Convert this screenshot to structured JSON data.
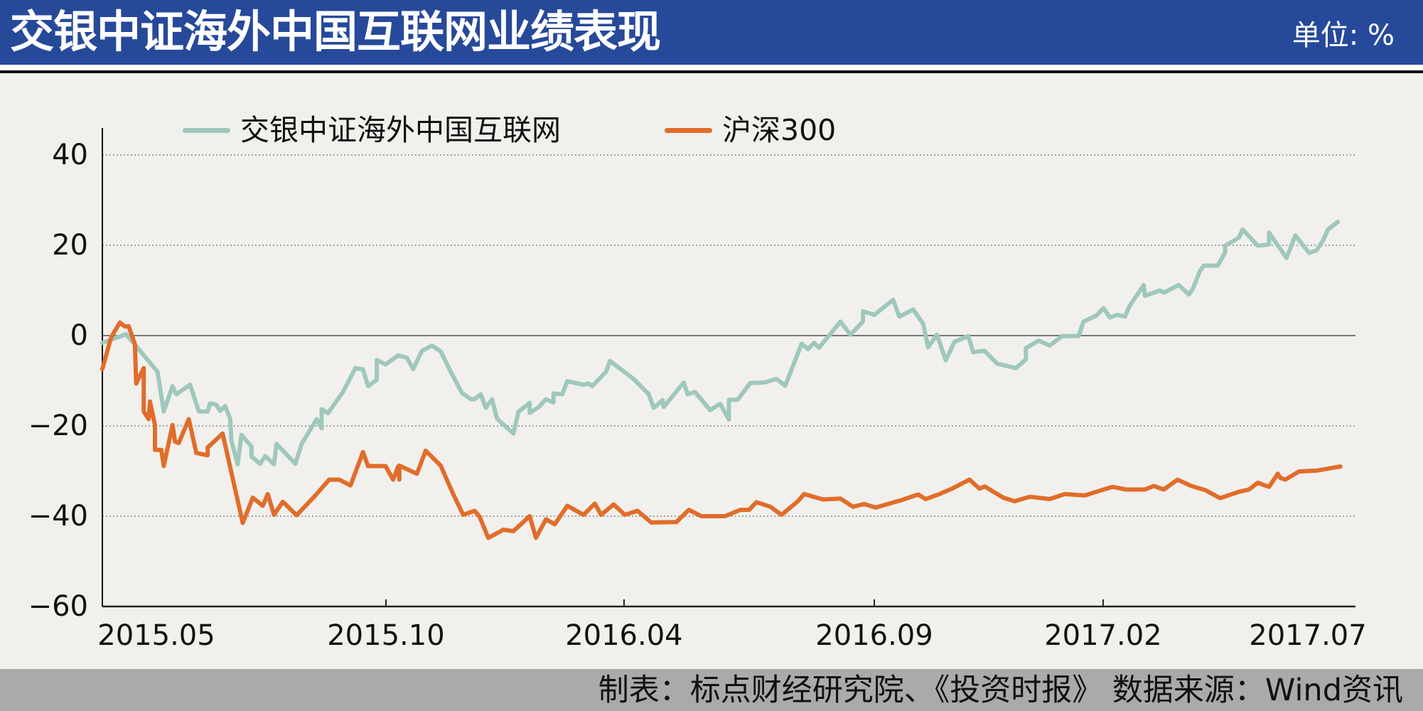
{
  "header": {
    "title": "交银中证海外中国互联网业绩表现",
    "unit": "单位: %"
  },
  "footer": {
    "source": "制表：标点财经研究院、《投资时报》 数据来源：Wind资讯"
  },
  "colors": {
    "header_bg": "#27499a",
    "series_fund": "#9fc8bd",
    "series_hs300": "#e06d2b",
    "background": "#f2f0ec",
    "footer_bg": "#aaaaaa"
  },
  "legend": [
    {
      "label": "交银中证海外中国互联网",
      "color": "#9fc8bd"
    },
    {
      "label": "沪深300",
      "color": "#e06d2b"
    }
  ],
  "chart_data": {
    "type": "line",
    "title": "交银中证海外中国互联网业绩表现",
    "unit": "%",
    "xlabel": "",
    "ylabel": "",
    "ylim": [
      -60,
      40
    ],
    "yticks": [
      40,
      20,
      0,
      -20,
      -40,
      -60
    ],
    "xticks": [
      {
        "label": "2015.05",
        "t": 0.0
      },
      {
        "label": "2015.10",
        "t": 0.2263
      },
      {
        "label": "2016.04",
        "t": 0.4163
      },
      {
        "label": "2016.09",
        "t": 0.616
      },
      {
        "label": "2017.02",
        "t": 0.7986
      },
      {
        "label": "2017.07",
        "t": 1.0
      }
    ],
    "grid": "horizontal dotted",
    "legend_position": "top",
    "x_note": "t = fractional position along time axis from 2015.05 (0) to 2017.07 (1)",
    "series": [
      {
        "name": "交银中证海外中国互联网",
        "color": "#9fc8bd",
        "points": [
          [
            0.0,
            -1.6
          ],
          [
            0.019,
            0.3
          ],
          [
            0.044,
            -8
          ],
          [
            0.049,
            -16.8
          ],
          [
            0.056,
            -11.2
          ],
          [
            0.059,
            -13
          ],
          [
            0.07,
            -10.9
          ],
          [
            0.077,
            -16.8
          ],
          [
            0.084,
            -16.8
          ],
          [
            0.086,
            -15
          ],
          [
            0.091,
            -15.3
          ],
          [
            0.094,
            -16.7
          ],
          [
            0.098,
            -15.6
          ],
          [
            0.102,
            -18.4
          ],
          [
            0.103,
            -23.3
          ],
          [
            0.108,
            -28.5
          ],
          [
            0.111,
            -22
          ],
          [
            0.119,
            -24.6
          ],
          [
            0.119,
            -26.8
          ],
          [
            0.126,
            -28.4
          ],
          [
            0.13,
            -26.7
          ],
          [
            0.137,
            -28.5
          ],
          [
            0.139,
            -24
          ],
          [
            0.154,
            -28.4
          ],
          [
            0.159,
            -24
          ],
          [
            0.171,
            -18.5
          ],
          [
            0.175,
            -20.5
          ],
          [
            0.175,
            -16.3
          ],
          [
            0.18,
            -17.2
          ],
          [
            0.192,
            -12.5
          ],
          [
            0.202,
            -7.2
          ],
          [
            0.208,
            -7.5
          ],
          [
            0.212,
            -11.2
          ],
          [
            0.219,
            -9.8
          ],
          [
            0.219,
            -5.4
          ],
          [
            0.226,
            -6.4
          ],
          [
            0.236,
            -4.4
          ],
          [
            0.243,
            -4.9
          ],
          [
            0.248,
            -7.4
          ],
          [
            0.255,
            -3.4
          ],
          [
            0.263,
            -2.2
          ],
          [
            0.27,
            -3.5
          ],
          [
            0.278,
            -8
          ],
          [
            0.287,
            -12.7
          ],
          [
            0.294,
            -14.1
          ],
          [
            0.297,
            -14.1
          ],
          [
            0.302,
            -13
          ],
          [
            0.306,
            -16
          ],
          [
            0.311,
            -14.1
          ],
          [
            0.315,
            -18.4
          ],
          [
            0.328,
            -21.7
          ],
          [
            0.332,
            -16.9
          ],
          [
            0.341,
            -14.9
          ],
          [
            0.341,
            -17.1
          ],
          [
            0.348,
            -15.9
          ],
          [
            0.354,
            -14.1
          ],
          [
            0.36,
            -14.8
          ],
          [
            0.36,
            -12.8
          ],
          [
            0.367,
            -13
          ],
          [
            0.371,
            -10.1
          ],
          [
            0.384,
            -10.9
          ],
          [
            0.388,
            -10.6
          ],
          [
            0.391,
            -11.2
          ],
          [
            0.402,
            -8
          ],
          [
            0.405,
            -5.6
          ],
          [
            0.424,
            -9.6
          ],
          [
            0.436,
            -13
          ],
          [
            0.44,
            -16
          ],
          [
            0.447,
            -14.3
          ],
          [
            0.448,
            -15.8
          ],
          [
            0.464,
            -10.4
          ],
          [
            0.467,
            -13
          ],
          [
            0.473,
            -12.5
          ],
          [
            0.485,
            -16.5
          ],
          [
            0.493,
            -15.1
          ],
          [
            0.5,
            -18.6
          ],
          [
            0.5,
            -14.2
          ],
          [
            0.507,
            -14.2
          ],
          [
            0.517,
            -10.5
          ],
          [
            0.528,
            -10.4
          ],
          [
            0.538,
            -9.6
          ],
          [
            0.545,
            -11.1
          ],
          [
            0.558,
            -1.8
          ],
          [
            0.563,
            -3
          ],
          [
            0.568,
            -1.6
          ],
          [
            0.572,
            -2.7
          ],
          [
            0.589,
            3.1
          ],
          [
            0.597,
            0.2
          ],
          [
            0.607,
            3.1
          ],
          [
            0.607,
            5.4
          ],
          [
            0.616,
            4.6
          ],
          [
            0.631,
            7.9
          ],
          [
            0.636,
            4.2
          ],
          [
            0.647,
            5.8
          ],
          [
            0.655,
            2.6
          ],
          [
            0.659,
            -2.6
          ],
          [
            0.666,
            0.2
          ],
          [
            0.673,
            -5.5
          ],
          [
            0.68,
            -1.4
          ],
          [
            0.691,
            -0.1
          ],
          [
            0.695,
            -3.7
          ],
          [
            0.699,
            -3.5
          ],
          [
            0.704,
            -3.4
          ],
          [
            0.714,
            -6.2
          ],
          [
            0.729,
            -7.2
          ],
          [
            0.737,
            -5.3
          ],
          [
            0.737,
            -2.8
          ],
          [
            0.747,
            -1.1
          ],
          [
            0.756,
            -2.2
          ],
          [
            0.766,
            -0.1
          ],
          [
            0.779,
            -0.1
          ],
          [
            0.783,
            3.1
          ],
          [
            0.793,
            4.4
          ],
          [
            0.799,
            6.1
          ],
          [
            0.804,
            4
          ],
          [
            0.81,
            4.6
          ],
          [
            0.816,
            4.2
          ],
          [
            0.82,
            6.7
          ],
          [
            0.831,
            11.2
          ],
          [
            0.832,
            8.8
          ],
          [
            0.844,
            10
          ],
          [
            0.847,
            9.5
          ],
          [
            0.859,
            11.2
          ],
          [
            0.867,
            9.1
          ],
          [
            0.87,
            10.2
          ],
          [
            0.876,
            14.4
          ],
          [
            0.879,
            15.5
          ],
          [
            0.89,
            15.5
          ],
          [
            0.896,
            18.4
          ],
          [
            0.896,
            19.9
          ],
          [
            0.907,
            21.7
          ],
          [
            0.91,
            23.5
          ],
          [
            0.922,
            19.9
          ],
          [
            0.931,
            20.2
          ],
          [
            0.931,
            22.8
          ],
          [
            0.945,
            17.2
          ],
          [
            0.952,
            22.2
          ],
          [
            0.963,
            18.3
          ],
          [
            0.969,
            18.9
          ],
          [
            0.974,
            21
          ],
          [
            0.978,
            23.5
          ],
          [
            0.986,
            25.2
          ]
        ]
      },
      {
        "name": "沪深300",
        "color": "#e06d2b",
        "points": [
          [
            0.0,
            -7.4
          ],
          [
            0.007,
            -0.4
          ],
          [
            0.014,
            2.9
          ],
          [
            0.018,
            2
          ],
          [
            0.021,
            2.1
          ],
          [
            0.026,
            -1.9
          ],
          [
            0.027,
            -10.6
          ],
          [
            0.033,
            -7.2
          ],
          [
            0.033,
            -16.8
          ],
          [
            0.037,
            -18.5
          ],
          [
            0.038,
            -14.6
          ],
          [
            0.042,
            -19.8
          ],
          [
            0.042,
            -25.3
          ],
          [
            0.047,
            -25.3
          ],
          [
            0.049,
            -28.9
          ],
          [
            0.056,
            -19.8
          ],
          [
            0.058,
            -23.5
          ],
          [
            0.061,
            -23.8
          ],
          [
            0.069,
            -18.5
          ],
          [
            0.075,
            -26
          ],
          [
            0.084,
            -26.5
          ],
          [
            0.084,
            -24.8
          ],
          [
            0.096,
            -21.7
          ],
          [
            0.112,
            -41.5
          ],
          [
            0.12,
            -35.9
          ],
          [
            0.128,
            -37.7
          ],
          [
            0.132,
            -35.1
          ],
          [
            0.137,
            -39.7
          ],
          [
            0.144,
            -36.8
          ],
          [
            0.155,
            -39.8
          ],
          [
            0.17,
            -35.4
          ],
          [
            0.181,
            -31.9
          ],
          [
            0.189,
            -31.9
          ],
          [
            0.198,
            -33.2
          ],
          [
            0.208,
            -25.8
          ],
          [
            0.212,
            -28.9
          ],
          [
            0.226,
            -28.9
          ],
          [
            0.232,
            -31.9
          ],
          [
            0.236,
            -29
          ],
          [
            0.237,
            -31.9
          ],
          [
            0.237,
            -28.8
          ],
          [
            0.251,
            -30.6
          ],
          [
            0.258,
            -25.5
          ],
          [
            0.27,
            -28.8
          ],
          [
            0.28,
            -35.1
          ],
          [
            0.288,
            -39.7
          ],
          [
            0.297,
            -38.8
          ],
          [
            0.301,
            -40.1
          ],
          [
            0.308,
            -44.8
          ],
          [
            0.32,
            -43
          ],
          [
            0.328,
            -43.3
          ],
          [
            0.341,
            -40
          ],
          [
            0.346,
            -44.8
          ],
          [
            0.354,
            -40.7
          ],
          [
            0.361,
            -41.8
          ],
          [
            0.371,
            -37.7
          ],
          [
            0.384,
            -39.7
          ],
          [
            0.393,
            -37.2
          ],
          [
            0.398,
            -39.7
          ],
          [
            0.408,
            -37.4
          ],
          [
            0.417,
            -39.7
          ],
          [
            0.427,
            -38.8
          ],
          [
            0.438,
            -41.4
          ],
          [
            0.458,
            -41.3
          ],
          [
            0.468,
            -38.6
          ],
          [
            0.478,
            -40
          ],
          [
            0.497,
            -40
          ],
          [
            0.509,
            -38.6
          ],
          [
            0.516,
            -38.6
          ],
          [
            0.522,
            -36.9
          ],
          [
            0.533,
            -37.9
          ],
          [
            0.542,
            -39.7
          ],
          [
            0.555,
            -36.7
          ],
          [
            0.56,
            -35.1
          ],
          [
            0.575,
            -36.3
          ],
          [
            0.589,
            -36.1
          ],
          [
            0.599,
            -37.9
          ],
          [
            0.608,
            -37.3
          ],
          [
            0.617,
            -38.1
          ],
          [
            0.637,
            -36.5
          ],
          [
            0.651,
            -35.2
          ],
          [
            0.657,
            -36.2
          ],
          [
            0.668,
            -35.1
          ],
          [
            0.678,
            -33.9
          ],
          [
            0.692,
            -31.9
          ],
          [
            0.7,
            -33.9
          ],
          [
            0.704,
            -33.4
          ],
          [
            0.719,
            -35.9
          ],
          [
            0.728,
            -36.7
          ],
          [
            0.74,
            -35.7
          ],
          [
            0.756,
            -36.2
          ],
          [
            0.768,
            -35.1
          ],
          [
            0.784,
            -35.4
          ],
          [
            0.806,
            -33.5
          ],
          [
            0.817,
            -34.1
          ],
          [
            0.832,
            -34.1
          ],
          [
            0.839,
            -33.3
          ],
          [
            0.847,
            -34.1
          ],
          [
            0.858,
            -31.9
          ],
          [
            0.869,
            -33.3
          ],
          [
            0.88,
            -34.2
          ],
          [
            0.892,
            -36
          ],
          [
            0.907,
            -34.6
          ],
          [
            0.915,
            -34.1
          ],
          [
            0.922,
            -32.6
          ],
          [
            0.931,
            -33.5
          ],
          [
            0.938,
            -30.6
          ],
          [
            0.94,
            -31.5
          ],
          [
            0.944,
            -31.9
          ],
          [
            0.955,
            -30.1
          ],
          [
            0.969,
            -29.9
          ],
          [
            0.988,
            -29
          ]
        ]
      }
    ]
  }
}
